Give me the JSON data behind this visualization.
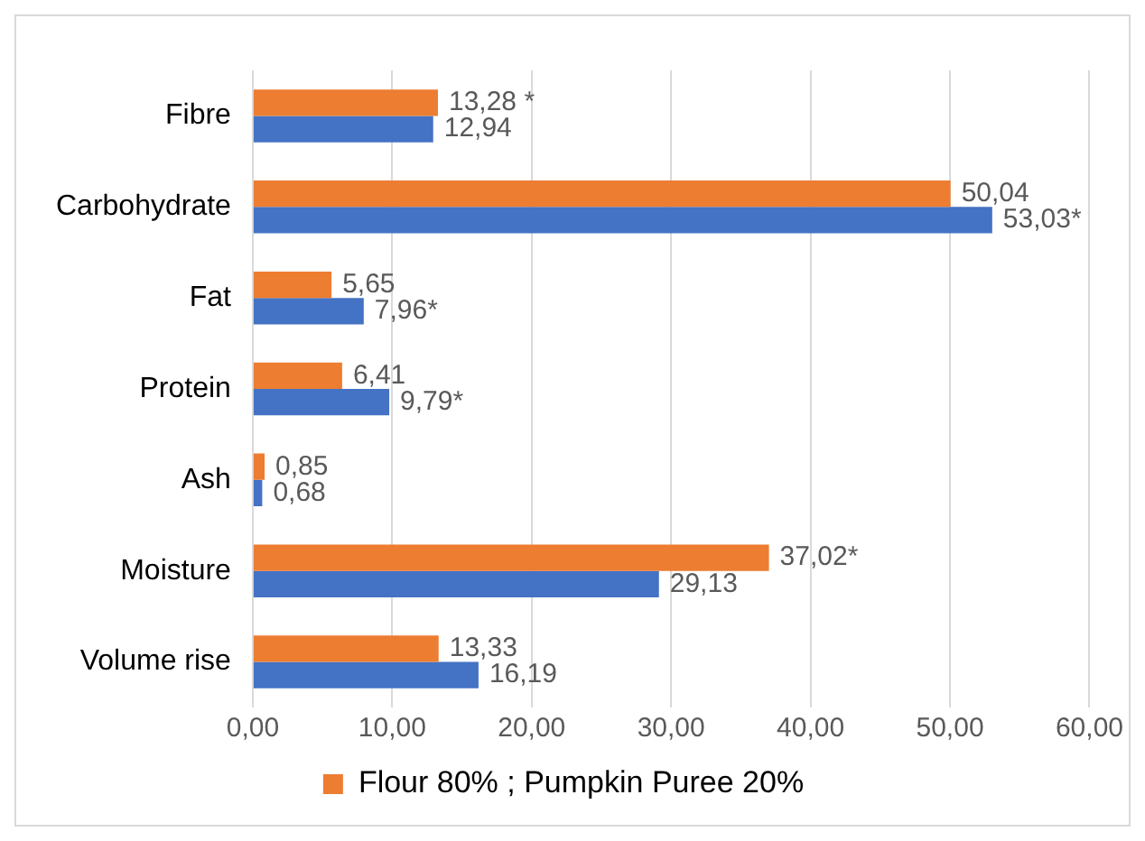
{
  "chart_data": {
    "type": "bar",
    "orientation": "horizontal",
    "categories": [
      "Fibre",
      "Carbohydrate",
      "Fat",
      "Protein",
      "Ash",
      "Moisture",
      "Volume rise"
    ],
    "series": [
      {
        "name": "Flour 80% ; Pumpkin Puree 20%",
        "color": "#ed7d31",
        "values": [
          13.28,
          50.04,
          5.65,
          6.41,
          0.85,
          37.02,
          13.33
        ],
        "value_labels": [
          "13,28 *",
          "50,04",
          "5,65",
          "6,41",
          "0,85",
          "37,02*",
          "13,33"
        ]
      },
      {
        "color": "#4472c4",
        "values": [
          12.94,
          53.03,
          7.96,
          9.79,
          0.68,
          29.13,
          16.19
        ],
        "value_labels": [
          "12,94",
          "53,03*",
          "7,96*",
          "9,79*",
          "0,68",
          "29,13",
          "16,19"
        ]
      }
    ],
    "xlim": [
      0,
      60
    ],
    "xticks": [
      {
        "value": 0,
        "label": "0,00"
      },
      {
        "value": 10,
        "label": "10,00"
      },
      {
        "value": 20,
        "label": "20,00"
      },
      {
        "value": 30,
        "label": "30,00"
      },
      {
        "value": 40,
        "label": "40,00"
      },
      {
        "value": 50,
        "label": "50,00"
      },
      {
        "value": 60,
        "label": "60,00"
      }
    ],
    "grid": "x",
    "legend": "bottom"
  }
}
